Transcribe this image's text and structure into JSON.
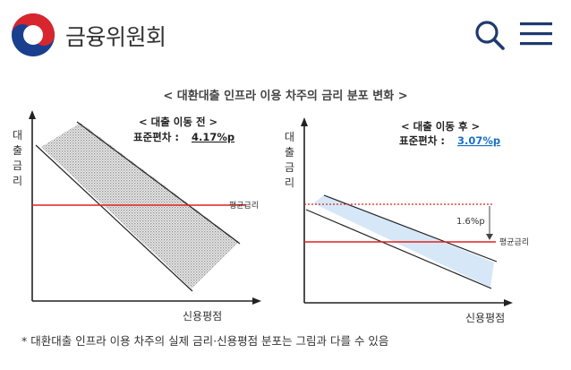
{
  "header": {
    "site_title": "금융위원회"
  },
  "figure": {
    "title": "< 대환대출 인프라 이용 차주의 금리 분포 변화 >",
    "y_axis_label": [
      "대",
      "출",
      "금",
      "리"
    ],
    "x_axis_label": "신용평점",
    "average_label": "평균금리",
    "before": {
      "heading": "< 대출 이동 전 >",
      "stat_label": "표준편차 :",
      "stat_value": "4.17%p"
    },
    "after": {
      "heading": "< 대출 이동 후 >",
      "stat_label": "표준편차 :",
      "stat_value": "3.07%p",
      "difference_label": "1.6%p"
    },
    "footnote": "* 대환대출 인프라 이용 차주의 실제 금리·신용평점 분포는 그림과 다를 수 있음"
  },
  "colors": {
    "average_line": "#e02020",
    "after_value": "#1a6fc4",
    "hatch_before": "#9a9a9a",
    "fill_after": "#cfe3f5"
  }
}
